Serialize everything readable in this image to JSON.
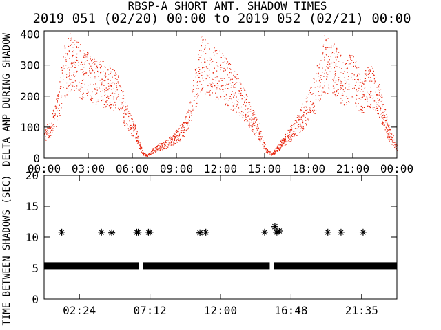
{
  "title": "RBSP-A SHORT ANT. SHADOW TIMES",
  "subtitle": "2019 051 (02/20) 00:00 to 2019 052 (02/21) 00:00",
  "chart_data": [
    {
      "type": "scatter",
      "ylabel": "DELTA AMP DURING SHADOW",
      "ylim": [
        0,
        410
      ],
      "yticks": [
        0,
        100,
        200,
        300,
        400
      ],
      "xlim": [
        0,
        24
      ],
      "xtick_labels": [
        "00:00",
        "03:00",
        "06:00",
        "09:00",
        "12:00",
        "15:00",
        "18:00",
        "21:00",
        "00:00"
      ],
      "marker_color": "#e8220a",
      "grid": false
    },
    {
      "type": "scatter",
      "ylabel": "TIME BETWEEN SHADOWS (SEC)",
      "ylim": [
        0,
        20
      ],
      "yticks": [
        0,
        5,
        10,
        15,
        20
      ],
      "xlim": [
        0,
        24
      ],
      "xtick_labels": [
        "02:24",
        "07:12",
        "12:00",
        "16:48",
        "21:35"
      ],
      "baseline_value": 5.4,
      "baseline_gaps_hours": [
        [
          6.45,
          6.75
        ],
        [
          15.35,
          15.65
        ]
      ],
      "outliers": [
        {
          "x": 1.2,
          "y": 10.8
        },
        {
          "x": 3.9,
          "y": 10.8
        },
        {
          "x": 4.6,
          "y": 10.7
        },
        {
          "x": 6.3,
          "y": 10.8
        },
        {
          "x": 6.4,
          "y": 10.8
        },
        {
          "x": 7.1,
          "y": 10.8
        },
        {
          "x": 7.2,
          "y": 10.8
        },
        {
          "x": 10.6,
          "y": 10.7
        },
        {
          "x": 11.0,
          "y": 10.8
        },
        {
          "x": 15.0,
          "y": 10.8
        },
        {
          "x": 15.7,
          "y": 11.7
        },
        {
          "x": 15.8,
          "y": 10.8
        },
        {
          "x": 15.9,
          "y": 10.8
        },
        {
          "x": 16.0,
          "y": 11.0
        },
        {
          "x": 19.3,
          "y": 10.8
        },
        {
          "x": 20.2,
          "y": 10.8
        },
        {
          "x": 21.7,
          "y": 10.8
        }
      ],
      "marker_color": "#000000",
      "grid": false
    }
  ]
}
